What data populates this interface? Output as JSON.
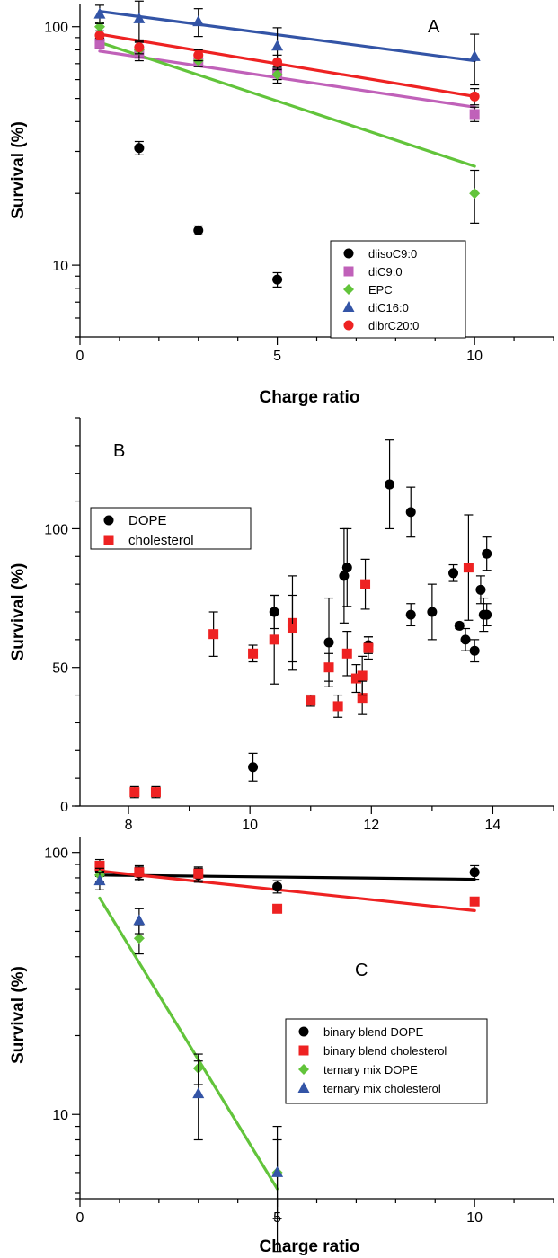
{
  "chart_data": [
    {
      "id": "A",
      "type": "scatter",
      "panel_label": "A",
      "xlabel": "Charge ratio",
      "ylabel": "Survival (%)",
      "yscale": "log",
      "xlim": [
        0,
        12
      ],
      "ylim": [
        5,
        125
      ],
      "xticks": [
        0,
        5,
        10
      ],
      "yticks": [
        10,
        100
      ],
      "legend_position": "lower-right",
      "series": [
        {
          "name": "diisoC9:0",
          "color": "#000000",
          "marker": "circle",
          "points": [
            [
              0.5,
              88,
              3
            ],
            [
              1.5,
              31,
              2
            ],
            [
              3,
              14,
              0.6
            ],
            [
              5,
              8.7,
              0.6
            ]
          ]
        },
        {
          "name": "diC9:0",
          "color": "#c061b9",
          "marker": "square",
          "points": [
            [
              0.5,
              85,
              4
            ],
            [
              1.5,
              77,
              5
            ],
            [
              3,
              71,
              3
            ],
            [
              5,
              64,
              4
            ],
            [
              10,
              43,
              3
            ]
          ],
          "fit": [
            [
              0.5,
              79
            ],
            [
              10,
              46
            ]
          ]
        },
        {
          "name": "EPC",
          "color": "#62c43b",
          "marker": "diamond",
          "points": [
            [
              0.5,
              100,
              4
            ],
            [
              1.5,
              80,
              6
            ],
            [
              3,
              72,
              4
            ],
            [
              5,
              63,
              5
            ],
            [
              10,
              20,
              5
            ]
          ],
          "fit": [
            [
              0.5,
              86
            ],
            [
              10,
              26
            ]
          ]
        },
        {
          "name": "diC16:0",
          "color": "#3354a6",
          "marker": "triangle",
          "points": [
            [
              0.5,
              113,
              10
            ],
            [
              1.5,
              108,
              20
            ],
            [
              3,
              105,
              14
            ],
            [
              5,
              83,
              16
            ],
            [
              10,
              75,
              18
            ]
          ],
          "fit": [
            [
              0.5,
              116
            ],
            [
              10,
              72
            ]
          ]
        },
        {
          "name": "dibrC20:0",
          "color": "#ee2222",
          "marker": "circle",
          "points": [
            [
              0.5,
              92,
              4
            ],
            [
              1.5,
              82,
              5
            ],
            [
              3,
              76,
              4
            ],
            [
              5,
              71,
              5
            ],
            [
              10,
              51,
              4
            ]
          ],
          "fit": [
            [
              0.5,
              93
            ],
            [
              10,
              51
            ]
          ]
        }
      ]
    },
    {
      "id": "B",
      "type": "scatter",
      "panel_label": "B",
      "xlabel": "",
      "ylabel": "Survival (%)",
      "yscale": "linear",
      "xlim": [
        7.2,
        15
      ],
      "ylim": [
        0,
        140
      ],
      "xticks": [
        8,
        10,
        12,
        14
      ],
      "yticks": [
        0,
        50,
        100
      ],
      "legend_position": "top-left",
      "series": [
        {
          "name": "DOPE",
          "color": "#000000",
          "marker": "circle",
          "points": [
            [
              10.05,
              14,
              5
            ],
            [
              10.4,
              70,
              6
            ],
            [
              11.3,
              59,
              16
            ],
            [
              11.55,
              83,
              17
            ],
            [
              11.6,
              86,
              14
            ],
            [
              11.95,
              58,
              3
            ],
            [
              12.3,
              116,
              16
            ],
            [
              12.65,
              106,
              9
            ],
            [
              12.65,
              69,
              4
            ],
            [
              13.0,
              70,
              10
            ],
            [
              13.35,
              84,
              3
            ],
            [
              13.45,
              65,
              1
            ],
            [
              13.55,
              60,
              4
            ],
            [
              13.7,
              56,
              4
            ],
            [
              13.8,
              78,
              5
            ],
            [
              13.85,
              69,
              6
            ],
            [
              13.9,
              69,
              4
            ],
            [
              13.9,
              91,
              6
            ]
          ]
        },
        {
          "name": "cholesterol",
          "color": "#ee2222",
          "marker": "square",
          "points": [
            [
              8.1,
              5,
              2
            ],
            [
              8.45,
              5,
              2
            ],
            [
              9.4,
              62,
              8
            ],
            [
              10.05,
              55,
              3
            ],
            [
              10.4,
              60,
              16
            ],
            [
              10.7,
              66,
              17
            ],
            [
              10.7,
              64,
              12
            ],
            [
              11.0,
              38,
              2
            ],
            [
              11.3,
              50,
              5
            ],
            [
              11.45,
              36,
              4
            ],
            [
              11.6,
              55,
              8
            ],
            [
              11.75,
              46,
              5
            ],
            [
              11.85,
              39,
              6
            ],
            [
              11.85,
              47,
              7
            ],
            [
              11.9,
              80,
              9
            ],
            [
              11.95,
              57,
              4
            ],
            [
              13.6,
              86,
              19
            ]
          ]
        }
      ]
    },
    {
      "id": "C",
      "type": "scatter",
      "panel_label": "C",
      "xlabel": "Charge ratio",
      "ylabel": "Survival (%)",
      "yscale": "log",
      "xlim": [
        0,
        12
      ],
      "ylim": [
        5,
        115
      ],
      "xticks": [
        0,
        5,
        10
      ],
      "yticks": [
        10,
        100
      ],
      "legend_position": "middle-right",
      "series": [
        {
          "name": "binary blend DOPE",
          "color": "#000000",
          "marker": "circle",
          "points": [
            [
              0.5,
              86,
              5
            ],
            [
              1.5,
              83,
              5
            ],
            [
              3,
              82,
              5
            ],
            [
              5,
              74,
              4
            ],
            [
              10,
              84,
              5
            ]
          ],
          "fit": [
            [
              0.5,
              82
            ],
            [
              10,
              79
            ]
          ]
        },
        {
          "name": "binary blend cholesterol",
          "color": "#ee2222",
          "marker": "square",
          "points": [
            [
              0.5,
              89,
              5
            ],
            [
              1.5,
              84,
              5
            ],
            [
              3,
              83,
              5
            ],
            [
              5,
              61,
              0
            ],
            [
              10,
              65,
              0
            ]
          ],
          "fit": [
            [
              0.5,
              85
            ],
            [
              10,
              60
            ]
          ]
        },
        {
          "name": "ternary mix DOPE",
          "color": "#62c43b",
          "marker": "diamond",
          "points": [
            [
              0.5,
              82,
              5
            ],
            [
              1.5,
              47,
              6
            ],
            [
              3,
              15,
              2
            ],
            [
              5,
              6,
              2
            ]
          ],
          "fit": [
            [
              0.5,
              67
            ],
            [
              5,
              5.2
            ]
          ]
        },
        {
          "name": "ternary mix cholesterol",
          "color": "#3354a6",
          "marker": "triangle",
          "points": [
            [
              0.5,
              78,
              6
            ],
            [
              1.5,
              55,
              6
            ],
            [
              3,
              12,
              4
            ],
            [
              5,
              6,
              3
            ]
          ]
        }
      ]
    }
  ]
}
